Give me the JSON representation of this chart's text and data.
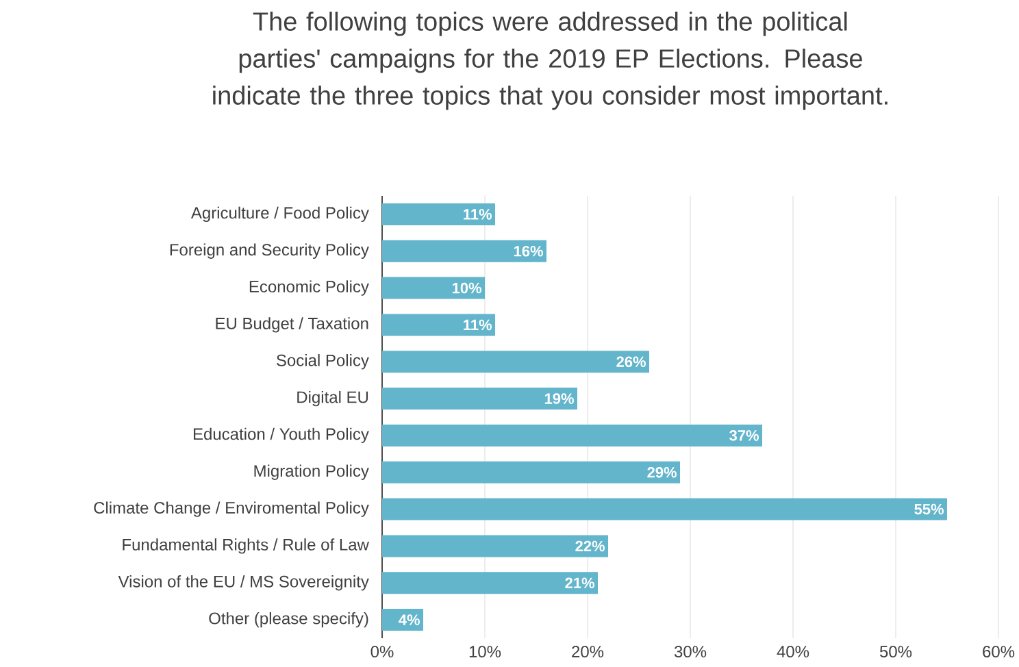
{
  "chart_data": {
    "type": "bar",
    "orientation": "horizontal",
    "title": "The following topics were addressed in the political parties' campaigns for the 2019 EP Elections. Please indicate the three topics that you consider most important.",
    "categories": [
      "Agriculture / Food Policy",
      "Foreign and Security Policy",
      "Economic Policy",
      "EU Budget / Taxation",
      "Social Policy",
      "Digital EU",
      "Education / Youth Policy",
      "Migration Policy",
      "Climate Change / Enviromental Policy",
      "Fundamental Rights / Rule of Law",
      "Vision of the EU / MS Sovereignity",
      "Other (please specify)"
    ],
    "values": [
      11,
      16,
      10,
      11,
      26,
      19,
      37,
      29,
      55,
      22,
      21,
      4
    ],
    "value_labels": [
      "11%",
      "16%",
      "10%",
      "11%",
      "26%",
      "19%",
      "37%",
      "29%",
      "55%",
      "22%",
      "21%",
      "4%"
    ],
    "color": "#63b5cc",
    "xlim": [
      0,
      60
    ],
    "xticks": [
      {
        "value": 0,
        "label": "0%"
      },
      {
        "value": 10,
        "label": "10%"
      },
      {
        "value": 20,
        "label": "20%"
      },
      {
        "value": 30,
        "label": "30%"
      },
      {
        "value": 40,
        "label": "40%"
      },
      {
        "value": 50,
        "label": "50%"
      },
      {
        "value": 60,
        "label": "60%"
      }
    ],
    "grid": "x"
  }
}
